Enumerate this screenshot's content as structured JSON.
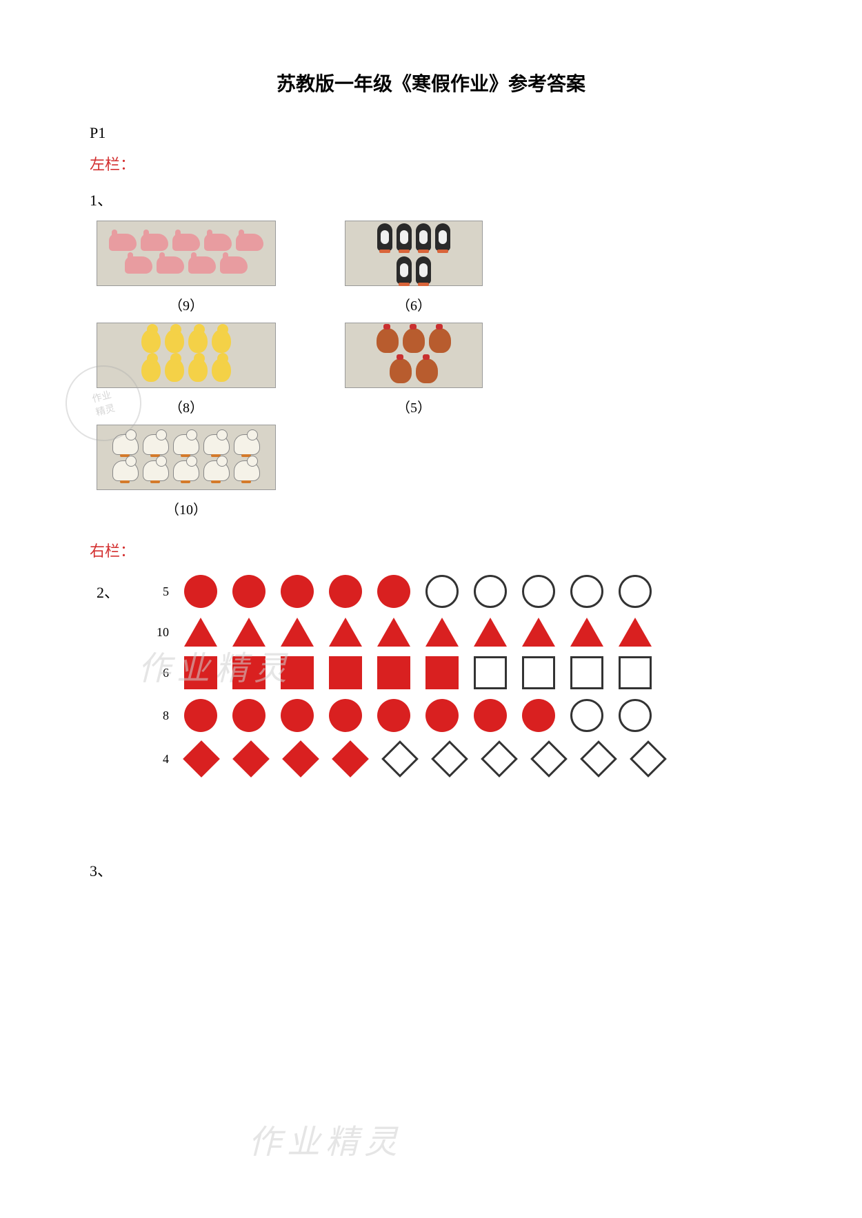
{
  "title": "苏教版一年级《寒假作业》参考答案",
  "page_ref": "P1",
  "section_left": "左栏：",
  "section_right": "右栏：",
  "q1_label": "1、",
  "q2_label": "2、",
  "q3_label": "3、",
  "watermark_text": "作业精灵",
  "colors": {
    "red_fill": "#d92020",
    "section_label": "#d32f2f",
    "outline": "#333333",
    "background": "#ffffff",
    "image_bg": "#d8d4c8"
  },
  "counting": {
    "items": [
      {
        "animal": "rabbit",
        "count_total": 9,
        "label": "（9）",
        "rows": [
          5,
          4
        ],
        "box_class": ""
      },
      {
        "animal": "penguin",
        "count_total": 6,
        "label": "（6）",
        "rows": [
          4,
          2
        ],
        "box_class": "narrow"
      },
      {
        "animal": "chick",
        "count_total": 8,
        "label": "（8）",
        "rows": [
          4,
          4
        ],
        "box_class": ""
      },
      {
        "animal": "hen",
        "count_total": 5,
        "label": "（5）",
        "rows": [
          3,
          2
        ],
        "box_class": "narrow"
      },
      {
        "animal": "duck",
        "count_total": 10,
        "label": "（10）",
        "rows": [
          5,
          5
        ],
        "box_class": ""
      }
    ]
  },
  "shapes": {
    "total_per_row": 10,
    "rows": [
      {
        "number": "5",
        "shape": "circle",
        "filled": 5
      },
      {
        "number": "10",
        "shape": "triangle",
        "filled": 10
      },
      {
        "number": "6",
        "shape": "square",
        "filled": 6
      },
      {
        "number": "8",
        "shape": "circle",
        "filled": 8
      },
      {
        "number": "4",
        "shape": "diamond",
        "filled": 4
      }
    ]
  }
}
